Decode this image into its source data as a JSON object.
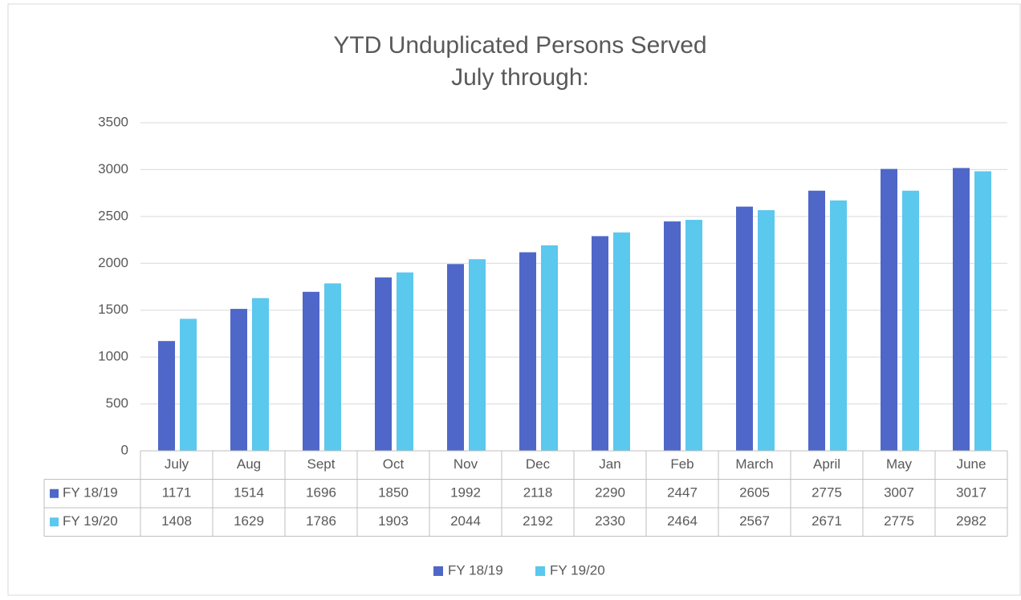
{
  "chart_data": {
    "type": "bar",
    "title": "YTD Unduplicated Persons Served",
    "subtitle": "July through:",
    "categories": [
      "July",
      "Aug",
      "Sept",
      "Oct",
      "Nov",
      "Dec",
      "Jan",
      "Feb",
      "March",
      "April",
      "May",
      "June"
    ],
    "series": [
      {
        "name": "FY 18/19",
        "color": "#4f67c8",
        "values": [
          1171,
          1514,
          1696,
          1850,
          1992,
          2118,
          2290,
          2447,
          2605,
          2775,
          3007,
          3017
        ]
      },
      {
        "name": "FY 19/20",
        "color": "#5bc8ee",
        "values": [
          1408,
          1629,
          1786,
          1903,
          2044,
          2192,
          2330,
          2464,
          2567,
          2671,
          2775,
          2982
        ]
      }
    ],
    "ylim": [
      0,
      3500
    ],
    "yticks": [
      0,
      500,
      1000,
      1500,
      2000,
      2500,
      3000,
      3500
    ],
    "grid": true,
    "legend": "bottom"
  }
}
